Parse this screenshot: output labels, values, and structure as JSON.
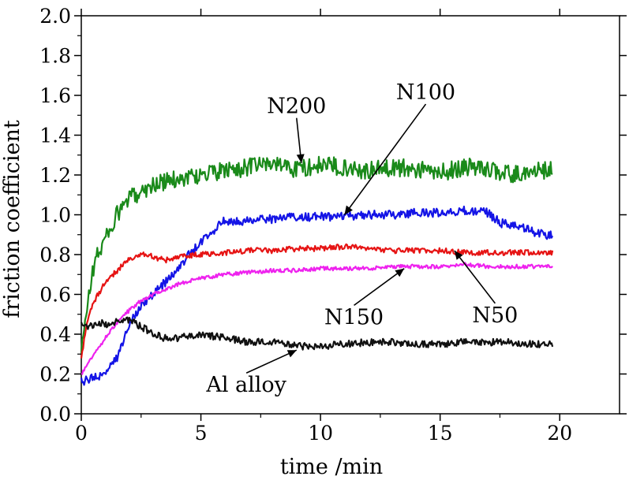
{
  "chart_data": {
    "type": "line",
    "title": "",
    "xlabel": "time /min",
    "ylabel": "friction coefficient",
    "xlim": [
      0,
      22.5
    ],
    "ylim": [
      0,
      2.0
    ],
    "x_ticks": [
      0,
      5,
      10,
      15,
      20
    ],
    "x_tick_labels": [
      "0",
      "5",
      "10",
      "15",
      "20"
    ],
    "y_ticks": [
      0.0,
      0.2,
      0.4,
      0.6,
      0.8,
      1.0,
      1.2,
      1.4,
      1.6,
      1.8,
      2.0
    ],
    "y_tick_labels": [
      "0.0",
      "0.2",
      "0.4",
      "0.6",
      "0.8",
      "1.0",
      "1.2",
      "1.4",
      "1.6",
      "1.8",
      "2.0"
    ],
    "grid": false,
    "legend": "none (series labeled by annotations with arrows)",
    "series": [
      {
        "name": "N200",
        "color": "#1a8a1a",
        "noise": 0.045,
        "x": [
          0,
          0.3,
          0.6,
          1.0,
          1.5,
          2.0,
          2.5,
          3.0,
          4.0,
          5.0,
          6.0,
          7.0,
          8.0,
          9.0,
          10.0,
          11.0,
          12.0,
          13.0,
          14.0,
          15.0,
          16.0,
          17.0,
          18.0,
          19.0,
          19.7
        ],
        "y": [
          0.3,
          0.6,
          0.78,
          0.88,
          1.0,
          1.08,
          1.12,
          1.15,
          1.18,
          1.2,
          1.22,
          1.24,
          1.26,
          1.23,
          1.25,
          1.24,
          1.22,
          1.24,
          1.23,
          1.21,
          1.24,
          1.23,
          1.2,
          1.22,
          1.23
        ]
      },
      {
        "name": "N100",
        "color": "#1414e6",
        "noise": 0.022,
        "x": [
          0,
          0.5,
          1.0,
          1.5,
          2.0,
          2.5,
          3.0,
          3.5,
          4.0,
          4.5,
          5.0,
          5.5,
          6.0,
          7.0,
          8.0,
          9.0,
          10.0,
          11.0,
          12.0,
          13.0,
          14.0,
          15.0,
          16.0,
          17.0,
          17.5,
          18.5,
          19.3,
          19.7
        ],
        "y": [
          0.16,
          0.18,
          0.2,
          0.28,
          0.45,
          0.55,
          0.6,
          0.66,
          0.72,
          0.8,
          0.86,
          0.92,
          0.97,
          0.97,
          0.98,
          0.99,
          0.99,
          0.99,
          1.0,
          1.0,
          1.01,
          1.01,
          1.02,
          1.01,
          0.96,
          0.93,
          0.9,
          0.9
        ]
      },
      {
        "name": "N50",
        "color": "#e61414",
        "noise": 0.014,
        "x": [
          0,
          0.3,
          0.7,
          1.0,
          1.5,
          2.0,
          2.5,
          3.0,
          3.5,
          4.0,
          5.0,
          6.0,
          7.0,
          8.0,
          9.0,
          10.0,
          11.0,
          12.0,
          13.0,
          14.0,
          15.0,
          16.0,
          17.0,
          18.0,
          19.0,
          19.7
        ],
        "y": [
          0.28,
          0.5,
          0.6,
          0.66,
          0.72,
          0.78,
          0.8,
          0.79,
          0.77,
          0.79,
          0.8,
          0.81,
          0.82,
          0.82,
          0.83,
          0.83,
          0.84,
          0.83,
          0.82,
          0.82,
          0.82,
          0.81,
          0.81,
          0.81,
          0.81,
          0.81
        ]
      },
      {
        "name": "N150",
        "color": "#ee22ee",
        "noise": 0.01,
        "x": [
          0,
          0.5,
          1.0,
          1.5,
          2.0,
          2.5,
          3.0,
          4.0,
          5.0,
          6.0,
          7.0,
          8.0,
          9.0,
          10.0,
          11.0,
          12.0,
          13.0,
          14.0,
          15.0,
          16.0,
          17.0,
          18.0,
          19.0,
          19.7
        ],
        "y": [
          0.2,
          0.3,
          0.38,
          0.46,
          0.52,
          0.57,
          0.6,
          0.65,
          0.68,
          0.7,
          0.71,
          0.72,
          0.72,
          0.73,
          0.73,
          0.73,
          0.74,
          0.74,
          0.74,
          0.75,
          0.74,
          0.74,
          0.74,
          0.74
        ]
      },
      {
        "name": "Al alloy",
        "color": "#111111",
        "noise": 0.018,
        "x": [
          0,
          0.3,
          0.7,
          1.0,
          1.5,
          2.0,
          2.5,
          3.0,
          3.5,
          4.0,
          5.0,
          6.0,
          7.0,
          8.0,
          9.0,
          10.0,
          11.0,
          12.0,
          13.0,
          14.0,
          15.0,
          16.0,
          17.0,
          18.0,
          19.0,
          19.7
        ],
        "y": [
          0.45,
          0.44,
          0.46,
          0.45,
          0.46,
          0.47,
          0.44,
          0.4,
          0.38,
          0.38,
          0.4,
          0.38,
          0.36,
          0.36,
          0.34,
          0.34,
          0.35,
          0.36,
          0.36,
          0.35,
          0.35,
          0.36,
          0.36,
          0.36,
          0.35,
          0.35
        ]
      }
    ],
    "annotations": [
      {
        "text": "N200",
        "text_at": [
          9.0,
          1.51
        ],
        "arrow_to": [
          9.2,
          1.26
        ]
      },
      {
        "text": "N100",
        "text_at": [
          14.4,
          1.58
        ],
        "arrow_to": [
          11.0,
          1.0
        ]
      },
      {
        "text": "N150",
        "text_at": [
          11.4,
          0.45
        ],
        "arrow_to": [
          13.5,
          0.73
        ]
      },
      {
        "text": "N50",
        "text_at": [
          17.3,
          0.46
        ],
        "arrow_to": [
          15.6,
          0.82
        ]
      },
      {
        "text": "Al alloy",
        "text_at": [
          6.9,
          0.11
        ],
        "arrow_to": [
          9.0,
          0.32
        ]
      }
    ]
  }
}
